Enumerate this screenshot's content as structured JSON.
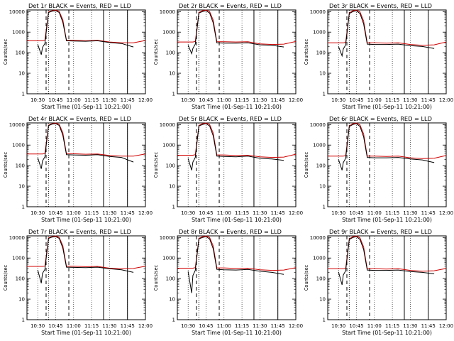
{
  "chart_data": [
    {
      "type": "line",
      "title": "Det 1r BLACK = Events, RED = LLD",
      "xlabel": "Start Time (01-Sep-11 10:21:00)",
      "ylabel": "Counts/sec",
      "x_ticks": [
        "10:30",
        "10:45",
        "11:00",
        "11:15",
        "11:30",
        "11:45",
        "12:00"
      ],
      "y_ticks": [
        "1",
        "10",
        "100",
        "1000",
        "10000"
      ],
      "y_scale": "log",
      "ylim": [
        1,
        12000
      ],
      "x": [
        "10:21",
        "10:30",
        "10:33",
        "10:34",
        "10:36",
        "10:39",
        "10:42",
        "10:45",
        "10:48",
        "10:51",
        "10:54",
        "11:00",
        "11:10",
        "11:20",
        "11:30",
        "11:40",
        "11:50",
        "12:00"
      ],
      "series": [
        {
          "name": "BLACK = Events",
          "color": "#000000",
          "values": [
            null,
            250,
            80,
            180,
            280,
            9000,
            10500,
            11000,
            9000,
            3000,
            380,
            370,
            360,
            380,
            310,
            280,
            190,
            null
          ]
        },
        {
          "name": "RED = LLD",
          "color": "#d00000",
          "values": [
            380,
            380,
            380,
            380,
            400,
            9500,
            11000,
            12000,
            10000,
            4000,
            400,
            400,
            380,
            400,
            330,
            300,
            300,
            390
          ]
        }
      ],
      "vlines_dashed": [
        "10:37",
        "10:56"
      ],
      "vlines_dotted": [
        "10:39"
      ],
      "vlines_solid": [
        "11:25",
        "11:45"
      ]
    },
    {
      "type": "line",
      "title": "Det 2r BLACK = Events, RED = LLD",
      "xlabel": "Start Time (01-Sep-11 10:21:00)",
      "ylabel": "Counts/sec",
      "x_ticks": [
        "10:30",
        "10:45",
        "11:00",
        "11:15",
        "11:30",
        "11:45",
        "12:00"
      ],
      "y_ticks": [
        "1",
        "10",
        "100",
        "1000",
        "10000"
      ],
      "y_scale": "log",
      "ylim": [
        1,
        12000
      ],
      "x": [
        "10:21",
        "10:30",
        "10:33",
        "10:34",
        "10:36",
        "10:39",
        "10:42",
        "10:45",
        "10:48",
        "10:51",
        "10:54",
        "11:00",
        "11:10",
        "11:20",
        "11:30",
        "11:40",
        "11:50",
        "12:00"
      ],
      "series": [
        {
          "name": "BLACK = Events",
          "color": "#000000",
          "values": [
            null,
            230,
            90,
            160,
            260,
            8500,
            10000,
            11000,
            8500,
            2800,
            300,
            290,
            290,
            300,
            240,
            230,
            190,
            null
          ]
        },
        {
          "name": "RED = LLD",
          "color": "#d00000",
          "values": [
            330,
            330,
            330,
            330,
            350,
            9000,
            11000,
            12000,
            10000,
            3800,
            340,
            340,
            330,
            340,
            270,
            250,
            260,
            350
          ]
        }
      ],
      "vlines_dashed": [
        "10:37",
        "10:56"
      ],
      "vlines_dotted": [
        "10:39"
      ],
      "vlines_solid": [
        "11:25",
        "11:45"
      ]
    },
    {
      "type": "line",
      "title": "Det 3r BLACK = Events, RED = LLD",
      "xlabel": "Start Time (01-Sep-11 10:21:00)",
      "ylabel": "Counts/sec",
      "x_ticks": [
        "10:30",
        "10:45",
        "11:00",
        "11:15",
        "11:30",
        "11:45",
        "12:00"
      ],
      "y_ticks": [
        "1",
        "10",
        "100",
        "1000",
        "10000"
      ],
      "y_scale": "log",
      "ylim": [
        1,
        12000
      ],
      "x": [
        "10:21",
        "10:30",
        "10:33",
        "10:34",
        "10:36",
        "10:39",
        "10:42",
        "10:45",
        "10:48",
        "10:51",
        "10:54",
        "11:00",
        "11:10",
        "11:20",
        "11:30",
        "11:40",
        "11:50",
        "12:00"
      ],
      "series": [
        {
          "name": "BLACK = Events",
          "color": "#000000",
          "values": [
            null,
            200,
            70,
            150,
            240,
            8000,
            10000,
            11000,
            8000,
            2500,
            260,
            250,
            250,
            260,
            220,
            200,
            160,
            null
          ]
        },
        {
          "name": "RED = LLD",
          "color": "#d00000",
          "values": [
            300,
            300,
            300,
            300,
            320,
            8500,
            11000,
            12000,
            9500,
            3500,
            300,
            300,
            290,
            300,
            250,
            230,
            240,
            330
          ]
        }
      ],
      "vlines_dashed": [
        "10:37",
        "10:56"
      ],
      "vlines_dotted": [
        "10:39"
      ],
      "vlines_solid": [
        "11:25",
        "11:45"
      ]
    },
    {
      "type": "line",
      "title": "Det 4r BLACK = Events, RED = LLD",
      "xlabel": "Start Time (01-Sep-11 10:21:00)",
      "ylabel": "Counts/sec",
      "x_ticks": [
        "10:30",
        "10:45",
        "11:00",
        "11:15",
        "11:30",
        "11:45",
        "12:00"
      ],
      "y_ticks": [
        "1",
        "10",
        "100",
        "1000",
        "10000"
      ],
      "y_scale": "log",
      "ylim": [
        1,
        12000
      ],
      "x": [
        "10:21",
        "10:30",
        "10:33",
        "10:34",
        "10:36",
        "10:39",
        "10:42",
        "10:45",
        "10:48",
        "10:51",
        "10:54",
        "11:00",
        "11:10",
        "11:20",
        "11:30",
        "11:40",
        "11:50",
        "12:00"
      ],
      "series": [
        {
          "name": "BLACK = Events",
          "color": "#000000",
          "values": [
            null,
            240,
            70,
            170,
            270,
            8800,
            10500,
            11000,
            9000,
            3000,
            340,
            330,
            320,
            340,
            280,
            250,
            150,
            null
          ]
        },
        {
          "name": "RED = LLD",
          "color": "#d00000",
          "values": [
            370,
            370,
            370,
            370,
            390,
            9300,
            11000,
            12000,
            10000,
            4000,
            380,
            380,
            360,
            370,
            310,
            290,
            290,
            370
          ]
        }
      ],
      "vlines_dashed": [
        "10:37",
        "10:56"
      ],
      "vlines_dotted": [
        "10:39"
      ],
      "vlines_solid": [
        "11:25",
        "11:45"
      ]
    },
    {
      "type": "line",
      "title": "Det 5r BLACK = Events, RED = LLD",
      "xlabel": "Start Time (01-Sep-11 10:21:00)",
      "ylabel": "Counts/sec",
      "x_ticks": [
        "10:30",
        "10:45",
        "11:00",
        "11:15",
        "11:30",
        "11:45",
        "12:00"
      ],
      "y_ticks": [
        "1",
        "10",
        "100",
        "1000",
        "10000"
      ],
      "y_scale": "log",
      "ylim": [
        1,
        12000
      ],
      "x": [
        "10:21",
        "10:30",
        "10:33",
        "10:34",
        "10:36",
        "10:39",
        "10:42",
        "10:45",
        "10:48",
        "10:51",
        "10:54",
        "11:00",
        "11:10",
        "11:20",
        "11:30",
        "11:40",
        "11:50",
        "12:00"
      ],
      "series": [
        {
          "name": "BLACK = Events",
          "color": "#000000",
          "values": [
            null,
            220,
            60,
            150,
            250,
            8500,
            10000,
            11000,
            8500,
            2800,
            290,
            280,
            270,
            290,
            230,
            210,
            180,
            null
          ]
        },
        {
          "name": "RED = LLD",
          "color": "#d00000",
          "values": [
            320,
            320,
            320,
            320,
            340,
            9000,
            11000,
            12000,
            10000,
            3800,
            330,
            330,
            310,
            320,
            270,
            250,
            260,
            360
          ]
        }
      ],
      "vlines_dashed": [
        "10:37",
        "10:56"
      ],
      "vlines_dotted": [
        "10:39"
      ],
      "vlines_solid": [
        "11:25",
        "11:45"
      ]
    },
    {
      "type": "line",
      "title": "Det 6r BLACK = Events, RED = LLD",
      "xlabel": "Start Time (01-Sep-11 10:21:00)",
      "ylabel": "Counts/sec",
      "x_ticks": [
        "10:30",
        "10:45",
        "11:00",
        "11:15",
        "11:30",
        "11:45",
        "12:00"
      ],
      "y_ticks": [
        "1",
        "10",
        "100",
        "1000",
        "10000"
      ],
      "y_scale": "log",
      "ylim": [
        1,
        12000
      ],
      "x": [
        "10:21",
        "10:30",
        "10:33",
        "10:34",
        "10:36",
        "10:39",
        "10:42",
        "10:45",
        "10:48",
        "10:51",
        "10:54",
        "11:00",
        "11:10",
        "11:20",
        "11:30",
        "11:40",
        "11:50",
        "12:00"
      ],
      "series": [
        {
          "name": "BLACK = Events",
          "color": "#000000",
          "values": [
            null,
            200,
            60,
            140,
            230,
            8000,
            10000,
            11000,
            8000,
            2500,
            250,
            240,
            240,
            250,
            210,
            190,
            140,
            null
          ]
        },
        {
          "name": "RED = LLD",
          "color": "#d00000",
          "values": [
            290,
            290,
            290,
            290,
            310,
            8500,
            11000,
            12000,
            9500,
            3500,
            290,
            290,
            280,
            290,
            240,
            220,
            230,
            310
          ]
        }
      ],
      "vlines_dashed": [
        "10:37",
        "10:56"
      ],
      "vlines_dotted": [
        "10:39"
      ],
      "vlines_solid": [
        "11:25",
        "11:45"
      ]
    },
    {
      "type": "line",
      "title": "Det 7r BLACK = Events, RED = LLD",
      "xlabel": "Start Time (01-Sep-11 10:21:00)",
      "ylabel": "Counts/sec",
      "x_ticks": [
        "10:30",
        "10:45",
        "11:00",
        "11:15",
        "11:30",
        "11:45",
        "12:00"
      ],
      "y_ticks": [
        "1",
        "10",
        "100",
        "1000",
        "10000"
      ],
      "y_scale": "log",
      "ylim": [
        1,
        12000
      ],
      "x": [
        "10:21",
        "10:30",
        "10:33",
        "10:34",
        "10:36",
        "10:39",
        "10:42",
        "10:45",
        "10:48",
        "10:51",
        "10:54",
        "11:00",
        "11:10",
        "11:20",
        "11:30",
        "11:40",
        "11:50",
        "12:00"
      ],
      "series": [
        {
          "name": "BLACK = Events",
          "color": "#000000",
          "values": [
            null,
            260,
            60,
            180,
            280,
            9000,
            10500,
            11000,
            9000,
            3000,
            360,
            350,
            340,
            360,
            300,
            270,
            200,
            null
          ]
        },
        {
          "name": "RED = LLD",
          "color": "#d00000",
          "values": [
            390,
            390,
            390,
            390,
            400,
            9500,
            11000,
            12000,
            10000,
            4000,
            400,
            400,
            380,
            390,
            320,
            300,
            310,
            400
          ]
        }
      ],
      "vlines_dashed": [
        "10:37",
        "10:56"
      ],
      "vlines_dotted": [
        "10:39"
      ],
      "vlines_solid": [
        "11:25",
        "11:45"
      ]
    },
    {
      "type": "line",
      "title": "Det 8r BLACK = Events, RED = LLD",
      "xlabel": "Start Time (01-Sep-11 10:21:00)",
      "ylabel": "Counts/sec",
      "x_ticks": [
        "10:30",
        "10:45",
        "11:00",
        "11:15",
        "11:30",
        "11:45",
        "12:00"
      ],
      "y_ticks": [
        "1",
        "10",
        "100",
        "1000",
        "10000"
      ],
      "y_scale": "log",
      "ylim": [
        1,
        12000
      ],
      "x": [
        "10:21",
        "10:30",
        "10:33",
        "10:34",
        "10:36",
        "10:39",
        "10:42",
        "10:45",
        "10:48",
        "10:51",
        "10:54",
        "11:00",
        "11:10",
        "11:20",
        "11:30",
        "11:40",
        "11:50",
        "12:00"
      ],
      "series": [
        {
          "name": "BLACK = Events",
          "color": "#000000",
          "values": [
            null,
            220,
            20,
            140,
            250,
            8500,
            10000,
            11000,
            8500,
            2800,
            280,
            270,
            260,
            280,
            230,
            200,
            160,
            null
          ]
        },
        {
          "name": "RED = LLD",
          "color": "#d00000",
          "values": [
            320,
            320,
            320,
            320,
            340,
            9000,
            11000,
            12000,
            10000,
            3800,
            330,
            330,
            310,
            320,
            270,
            250,
            260,
            340
          ]
        }
      ],
      "vlines_dashed": [
        "10:37",
        "10:56"
      ],
      "vlines_dotted": [
        "10:39"
      ],
      "vlines_solid": [
        "11:25",
        "11:45"
      ]
    },
    {
      "type": "line",
      "title": "Det 9r BLACK = Events, RED = LLD",
      "xlabel": "Start Time (01-Sep-11 10:21:00)",
      "ylabel": "Counts/sec",
      "x_ticks": [
        "10:30",
        "10:45",
        "11:00",
        "11:15",
        "11:30",
        "11:45",
        "12:00"
      ],
      "y_ticks": [
        "1",
        "10",
        "100",
        "1000",
        "10000"
      ],
      "y_scale": "log",
      "ylim": [
        1,
        12000
      ],
      "x": [
        "10:21",
        "10:30",
        "10:33",
        "10:34",
        "10:36",
        "10:39",
        "10:42",
        "10:45",
        "10:48",
        "10:51",
        "10:54",
        "11:00",
        "11:10",
        "11:20",
        "11:30",
        "11:40",
        "11:50",
        "12:00"
      ],
      "series": [
        {
          "name": "BLACK = Events",
          "color": "#000000",
          "values": [
            null,
            210,
            50,
            150,
            240,
            8000,
            10000,
            11000,
            8000,
            2600,
            260,
            250,
            250,
            260,
            220,
            200,
            170,
            null
          ]
        },
        {
          "name": "RED = LLD",
          "color": "#d00000",
          "values": [
            300,
            300,
            300,
            300,
            320,
            8500,
            11000,
            12000,
            9500,
            3500,
            300,
            300,
            290,
            300,
            250,
            230,
            240,
            310
          ]
        }
      ],
      "vlines_dashed": [
        "10:37",
        "10:56"
      ],
      "vlines_dotted": [
        "10:39"
      ],
      "vlines_solid": [
        "11:25",
        "11:45"
      ]
    }
  ]
}
